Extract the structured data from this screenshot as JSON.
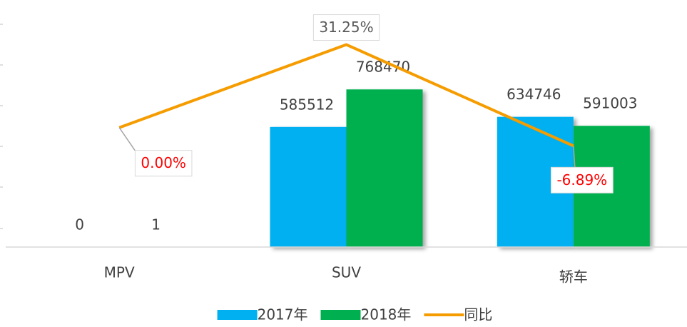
{
  "chart_data": {
    "type": "bar_line",
    "categories": [
      "MPV",
      "SUV",
      "轿车"
    ],
    "series": [
      {
        "name": "2017年",
        "type": "bar",
        "color": "#00b0f0",
        "values": [
          0,
          585512,
          634746
        ]
      },
      {
        "name": "2018年",
        "type": "bar",
        "color": "#00b050",
        "values": [
          1,
          768470,
          591003
        ]
      },
      {
        "name": "同比",
        "type": "line",
        "axis": "y2",
        "color": "#f59c00",
        "values": [
          0.0,
          31.25,
          -6.89
        ],
        "value_labels": [
          "0.00%",
          "31.25%",
          "-6.89%"
        ],
        "value_label_colors": [
          "#ff0000",
          "#595959",
          "#ff0000"
        ]
      }
    ],
    "ylim": [
      0,
      1100000
    ],
    "y2lim": [
      -45,
      40
    ],
    "legend": "bottom"
  }
}
